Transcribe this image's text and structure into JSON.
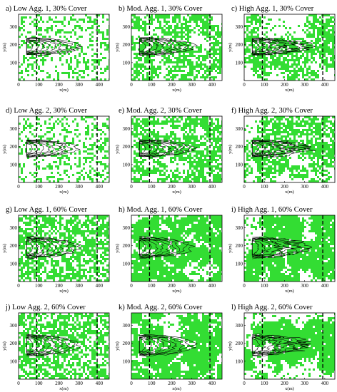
{
  "figure": {
    "axis_units": {
      "x": "x(m)",
      "y": "y(m)"
    },
    "xlim": [
      0,
      450
    ],
    "ylim": [
      0,
      370
    ],
    "x_ticks": [
      "0",
      "100",
      "200",
      "300",
      "400"
    ],
    "y_ticks": [
      "100",
      "200",
      "300"
    ],
    "vertical_dashed_lines_x": [
      90,
      390
    ],
    "colors": {
      "vegetation": "#33dd33",
      "background": "#ffffff",
      "contour": "#000000",
      "frame": "#000000"
    },
    "panels": [
      {
        "title": "a) Low Agg. 1, 30% Cover",
        "aggregation": "low",
        "cover": 0.3,
        "fire_extent_x": [
          40,
          300
        ]
      },
      {
        "title": "b) Mod. Agg. 1, 30% Cover",
        "aggregation": "moderate",
        "cover": 0.3,
        "fire_extent_x": [
          40,
          310
        ]
      },
      {
        "title": "c) High Agg. 1, 30% Cover",
        "aggregation": "high",
        "cover": 0.3,
        "fire_extent_x": [
          40,
          320
        ]
      },
      {
        "title": "d) Low Agg. 2, 30% Cover",
        "aggregation": "low",
        "cover": 0.3,
        "fire_extent_x": [
          40,
          290
        ]
      },
      {
        "title": "e) Mod. Agg. 2, 30% Cover",
        "aggregation": "moderate",
        "cover": 0.3,
        "fire_extent_x": [
          40,
          310
        ]
      },
      {
        "title": "f) High Agg. 2, 30% Cover",
        "aggregation": "high",
        "cover": 0.3,
        "fire_extent_x": [
          40,
          320
        ]
      },
      {
        "title": "g) Low Agg. 1, 60% Cover",
        "aggregation": "low",
        "cover": 0.6,
        "fire_extent_x": [
          40,
          300
        ]
      },
      {
        "title": "h) Mod. Agg. 1, 60% Cover",
        "aggregation": "moderate",
        "cover": 0.6,
        "fire_extent_x": [
          40,
          300
        ]
      },
      {
        "title": "i) High Agg. 1, 60% Cover",
        "aggregation": "high",
        "cover": 0.6,
        "fire_extent_x": [
          40,
          320
        ]
      },
      {
        "title": "j) Low Agg. 2, 60% Cover",
        "aggregation": "low",
        "cover": 0.6,
        "fire_extent_x": [
          40,
          300
        ]
      },
      {
        "title": "k) Mod. Agg. 2, 60% Cover",
        "aggregation": "moderate",
        "cover": 0.6,
        "fire_extent_x": [
          40,
          310
        ]
      },
      {
        "title": "l) High Agg. 2, 60% Cover",
        "aggregation": "high",
        "cover": 0.6,
        "fire_extent_x": [
          40,
          320
        ]
      }
    ]
  }
}
